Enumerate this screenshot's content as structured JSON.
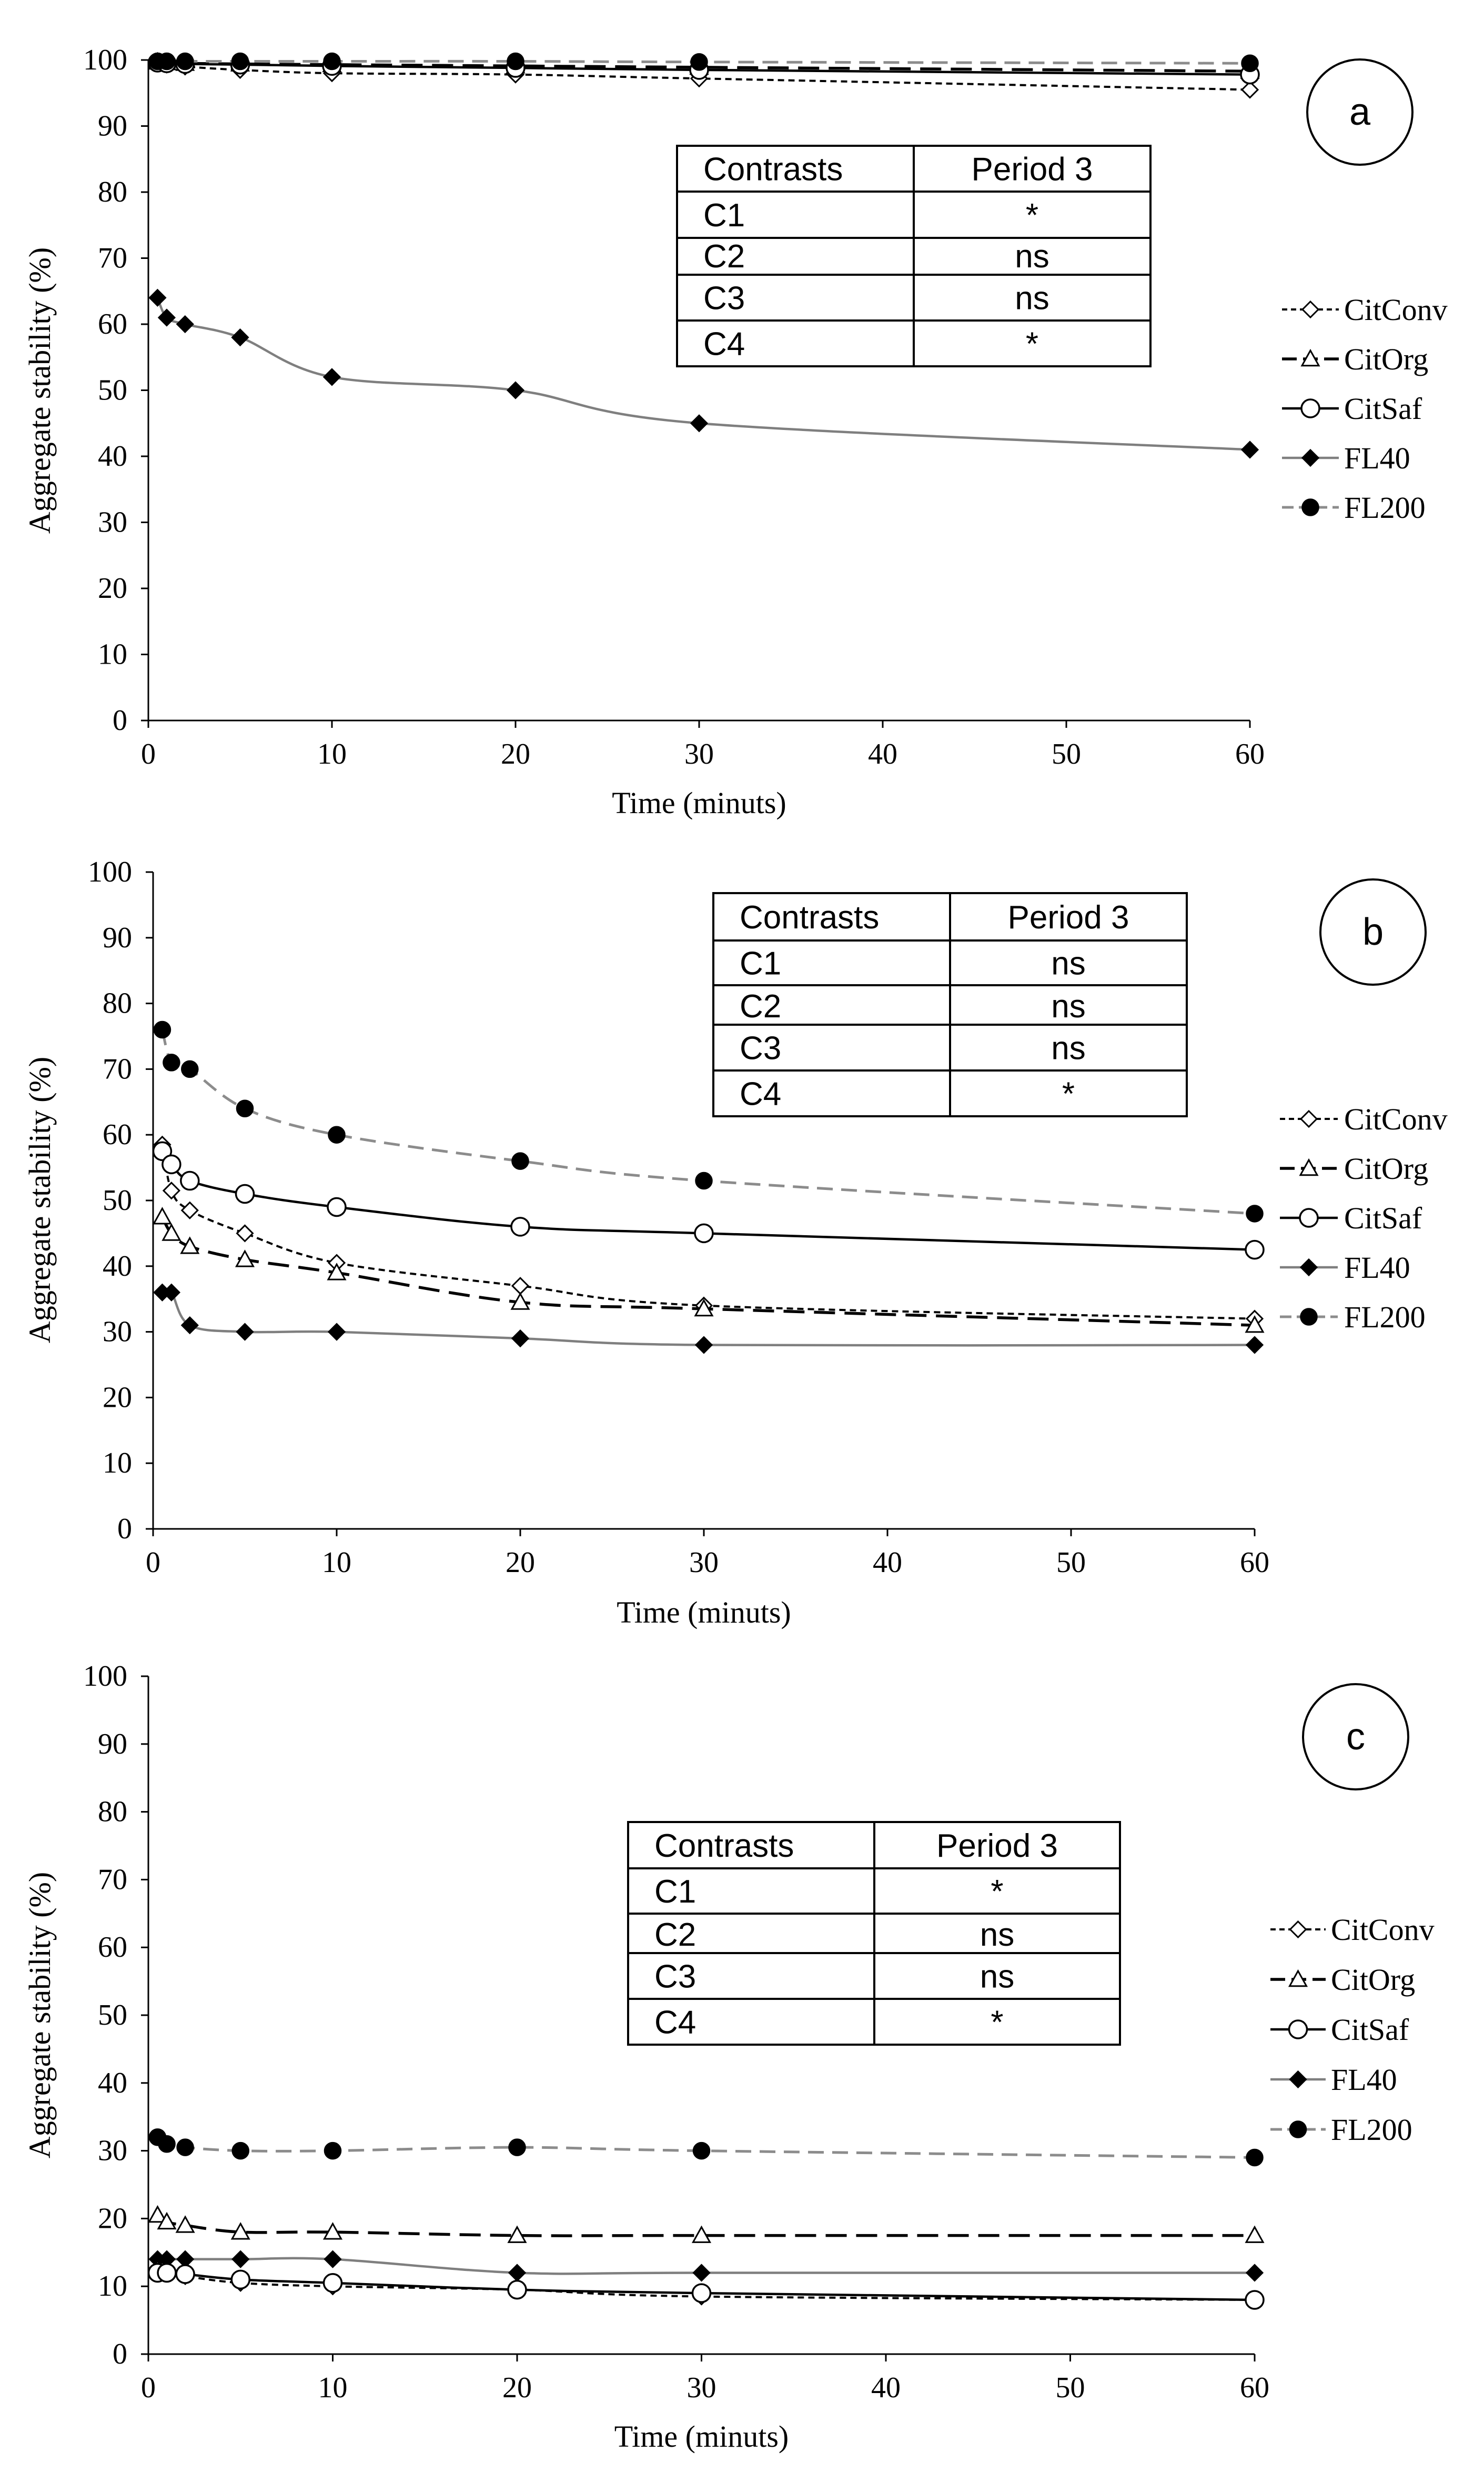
{
  "chart_data": [
    {
      "panel": "a",
      "type": "line",
      "xlabel": "Time (minuts)",
      "ylabel": "Aggregate stability (%)",
      "xlim": [
        0,
        60
      ],
      "ylim": [
        0,
        100
      ],
      "xticks": [
        0,
        10,
        20,
        30,
        40,
        50,
        60
      ],
      "yticks": [
        0,
        10,
        20,
        30,
        40,
        50,
        60,
        70,
        80,
        90,
        100
      ],
      "x": [
        0.5,
        1,
        2,
        5,
        10,
        20,
        30,
        60
      ],
      "series": [
        {
          "name": "CitConv",
          "values": [
            99.5,
            99.3,
            99,
            98.5,
            98,
            97.8,
            97.2,
            95.5
          ]
        },
        {
          "name": "CitOrg",
          "values": [
            99.7,
            99.6,
            99.5,
            99.4,
            99.3,
            99.1,
            98.9,
            98.3
          ]
        },
        {
          "name": "CitSaf",
          "values": [
            99.6,
            99.5,
            99.4,
            99.3,
            99.1,
            98.8,
            98.5,
            97.8
          ]
        },
        {
          "name": "FL40",
          "values": [
            64,
            61,
            60,
            58,
            52,
            50,
            45,
            41
          ]
        },
        {
          "name": "FL200",
          "values": [
            99.8,
            99.8,
            99.8,
            99.8,
            99.8,
            99.8,
            99.7,
            99.5
          ]
        }
      ],
      "table": {
        "headers": [
          "Contrasts",
          "Period 3"
        ],
        "rows": [
          [
            "C1",
            "*"
          ],
          [
            "C2",
            "ns"
          ],
          [
            "C3",
            "ns"
          ],
          [
            "C4",
            "*"
          ]
        ]
      }
    },
    {
      "panel": "b",
      "type": "line",
      "xlabel": "Time (minuts)",
      "ylabel": "Aggregate stability (%)",
      "xlim": [
        0,
        60
      ],
      "ylim": [
        0,
        100
      ],
      "xticks": [
        0,
        10,
        20,
        30,
        40,
        50,
        60
      ],
      "yticks": [
        0,
        10,
        20,
        30,
        40,
        50,
        60,
        70,
        80,
        90,
        100
      ],
      "x": [
        0.5,
        1,
        2,
        5,
        10,
        20,
        30,
        60
      ],
      "series": [
        {
          "name": "CitConv",
          "values": [
            58.5,
            51.5,
            48.5,
            45,
            40.5,
            37,
            34,
            32
          ]
        },
        {
          "name": "CitOrg",
          "values": [
            47.5,
            45,
            43,
            41,
            39,
            34.5,
            33.5,
            31
          ]
        },
        {
          "name": "CitSaf",
          "values": [
            57.5,
            55.5,
            53,
            51,
            49,
            46,
            45,
            42.5
          ]
        },
        {
          "name": "FL40",
          "values": [
            36,
            36,
            31,
            30,
            30,
            29,
            28,
            28
          ]
        },
        {
          "name": "FL200",
          "values": [
            76,
            71,
            70,
            64,
            60,
            56,
            53,
            48
          ]
        }
      ],
      "table": {
        "headers": [
          "Contrasts",
          "Period 3"
        ],
        "rows": [
          [
            "C1",
            "ns"
          ],
          [
            "C2",
            "ns"
          ],
          [
            "C3",
            "ns"
          ],
          [
            "C4",
            "*"
          ]
        ]
      }
    },
    {
      "panel": "c",
      "type": "line",
      "xlabel": "Time (minuts)",
      "ylabel": "Aggregate stability (%)",
      "xlim": [
        0,
        60
      ],
      "ylim": [
        0,
        100
      ],
      "xticks": [
        0,
        10,
        20,
        30,
        40,
        50,
        60
      ],
      "yticks": [
        0,
        10,
        20,
        30,
        40,
        50,
        60,
        70,
        80,
        90,
        100
      ],
      "x": [
        0.5,
        1,
        2,
        5,
        10,
        20,
        30,
        60
      ],
      "series": [
        {
          "name": "CitConv",
          "values": [
            12.5,
            12,
            11.5,
            10.5,
            10,
            9.5,
            8.5,
            8
          ]
        },
        {
          "name": "CitOrg",
          "values": [
            20.5,
            19.5,
            19,
            18,
            18,
            17.5,
            17.5,
            17.5
          ]
        },
        {
          "name": "CitSaf",
          "values": [
            12,
            12,
            11.8,
            11,
            10.5,
            9.5,
            9,
            8
          ]
        },
        {
          "name": "FL40",
          "values": [
            14,
            14,
            14,
            14,
            14,
            12,
            12,
            12
          ]
        },
        {
          "name": "FL200",
          "values": [
            32,
            31,
            30.5,
            30,
            30,
            30.5,
            30,
            29
          ]
        }
      ],
      "table": {
        "headers": [
          "Contrasts",
          "Period 3"
        ],
        "rows": [
          [
            "C1",
            "*"
          ],
          [
            "C2",
            "ns"
          ],
          [
            "C3",
            "ns"
          ],
          [
            "C4",
            "*"
          ]
        ]
      }
    }
  ]
}
